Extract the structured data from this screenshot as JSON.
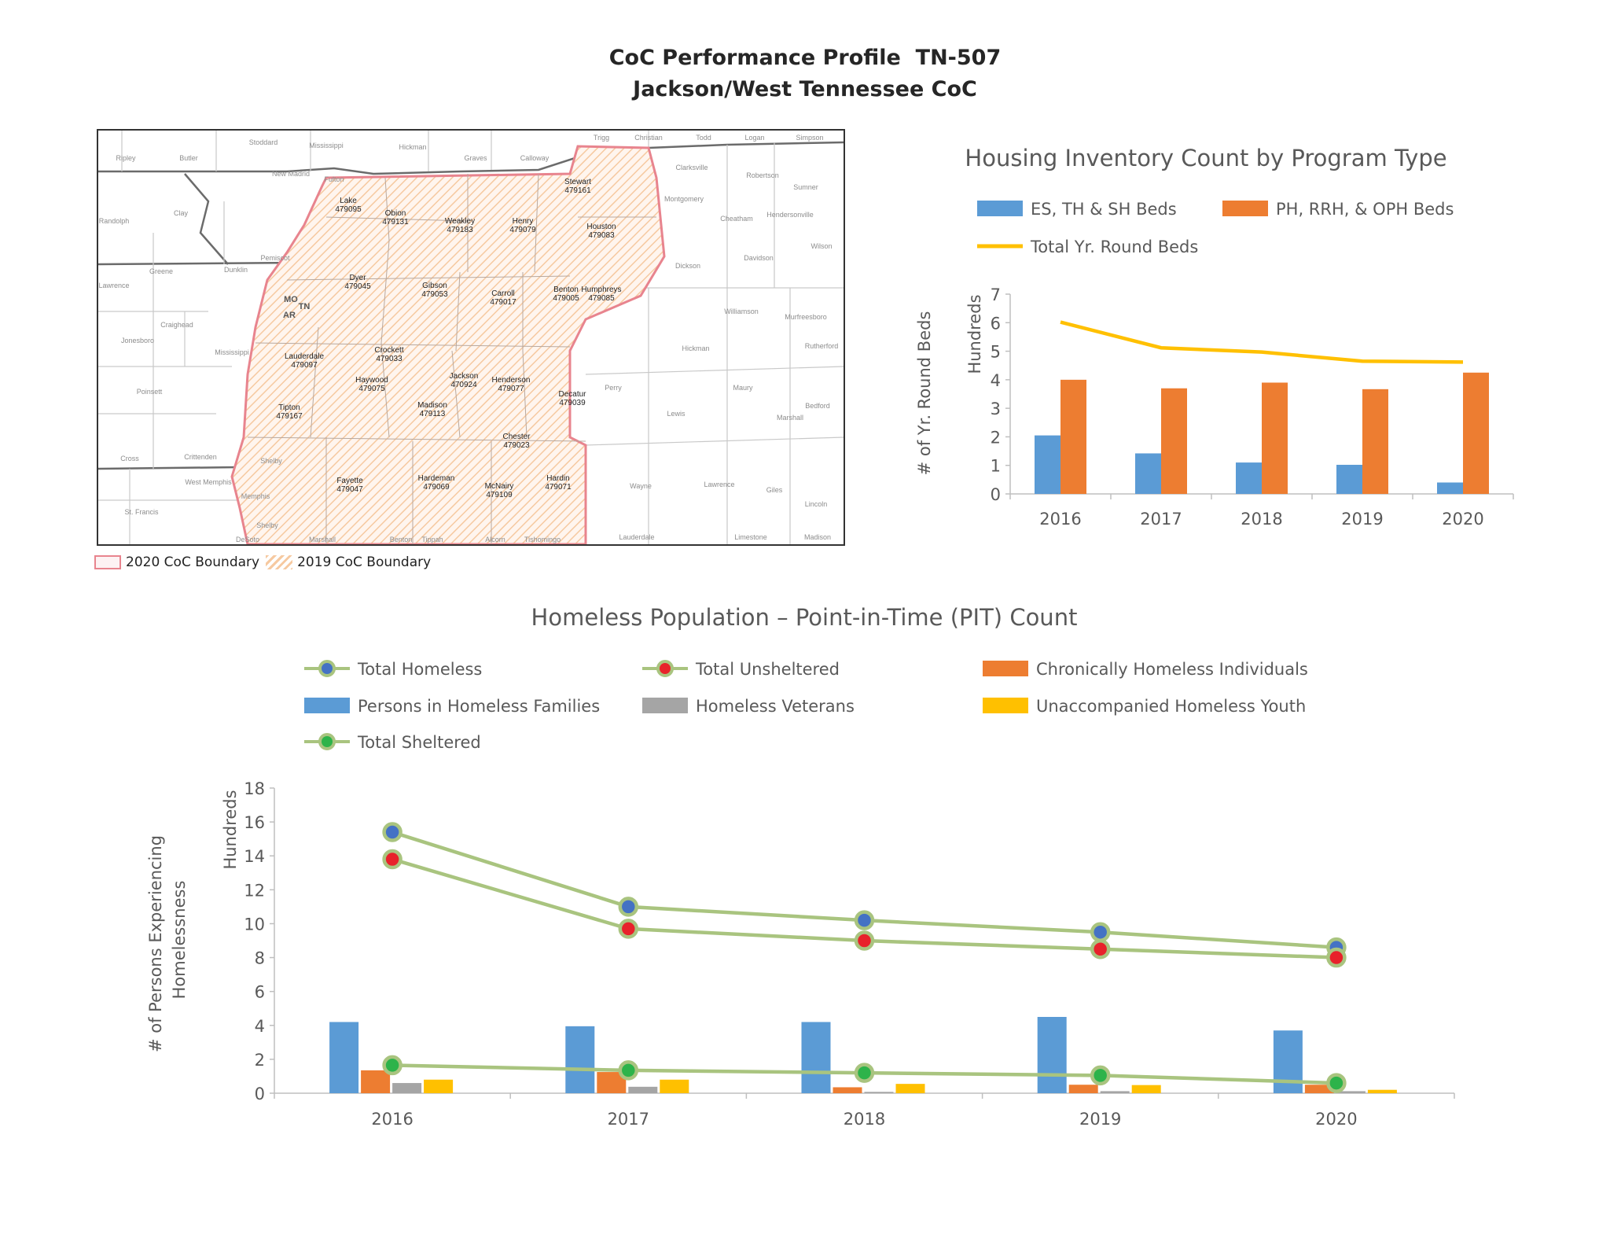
{
  "header": {
    "title_prefix": "CoC Performance Profile",
    "title_code": "TN-507",
    "subtitle": "Jackson/West Tennessee CoC"
  },
  "map": {
    "legend_2020": "2020 CoC Boundary",
    "legend_2019": "2019 CoC Boundary",
    "state_labels": [
      "MO",
      "TN",
      "AR"
    ],
    "coc_counties": [
      {
        "name": "Lake",
        "code": "479095"
      },
      {
        "name": "Obion",
        "code": "479131"
      },
      {
        "name": "Weakley",
        "code": "479183"
      },
      {
        "name": "Henry",
        "code": "479079"
      },
      {
        "name": "Stewart",
        "code": "479161"
      },
      {
        "name": "Houston",
        "code": "479083"
      },
      {
        "name": "Dyer",
        "code": "479045"
      },
      {
        "name": "Gibson",
        "code": "479053"
      },
      {
        "name": "Carroll",
        "code": "479017"
      },
      {
        "name": "Benton",
        "code": "479005"
      },
      {
        "name": "Humphreys",
        "code": "479085"
      },
      {
        "name": "Crockett",
        "code": "479033"
      },
      {
        "name": "Lauderdale",
        "code": "479097"
      },
      {
        "name": "Jackson",
        "code": "470924"
      },
      {
        "name": "Haywood",
        "code": "479075"
      },
      {
        "name": "Henderson",
        "code": "479077"
      },
      {
        "name": "Madison",
        "code": "479113"
      },
      {
        "name": "Decatur",
        "code": "479039"
      },
      {
        "name": "Tipton",
        "code": "479167"
      },
      {
        "name": "Chester",
        "code": "479023"
      },
      {
        "name": "Fayette",
        "code": "479047"
      },
      {
        "name": "Hardeman",
        "code": "479069"
      },
      {
        "name": "McNairy",
        "code": "479109"
      },
      {
        "name": "Hardin",
        "code": "479071"
      }
    ],
    "other_counties": [
      "Stoddard",
      "Mississippi",
      "Hickman",
      "Graves",
      "Calloway",
      "Trigg",
      "Christian",
      "Todd",
      "Logan",
      "Simpson",
      "Ripley",
      "Butler",
      "New Madrid",
      "Fulton",
      "Clarksville",
      "Robertson",
      "Sumner",
      "Montgomery",
      "Randolph",
      "Clay",
      "Cheatham",
      "Hendersonville",
      "Wilson",
      "Pemiscot",
      "Davidson",
      "Greene",
      "Dunklin",
      "Dickson",
      "Lawrence",
      "Craighead",
      "Williamson",
      "Murfreesboro",
      "Jonesboro",
      "Mississippi",
      "Hickman",
      "Rutherford",
      "Poinsett",
      "Perry",
      "Maury",
      "Lewis",
      "Marshall",
      "Bedford",
      "Cross",
      "Crittenden",
      "Shelby",
      "West Memphis",
      "Wayne",
      "Lawrence",
      "Giles",
      "Lincoln",
      "Memphis",
      "Shelby",
      "St. Francis",
      "DeSoto",
      "Marshall",
      "Benton",
      "Tippah",
      "Alcorn",
      "Tishomingo",
      "Lauderdale",
      "Limestone",
      "Madison"
    ]
  },
  "colors": {
    "blue": "#5b9bd5",
    "orange": "#ed7d31",
    "gray": "#a5a5a5",
    "yellow": "#ffc000",
    "green_line": "#a9c47f",
    "marker_blue": "#4472c4",
    "marker_red": "#e8222b",
    "marker_green": "#2db34a",
    "boundary_2020": "#e8848e",
    "hatch_2019": "#f6c9a0"
  },
  "hic_chart": {
    "chart_data": {
      "type": "bar",
      "title": "Housing Inventory Count by Program Type",
      "ylabel": "# of Yr. Round Beds",
      "units_label": "Hundreds",
      "categories": [
        "2016",
        "2017",
        "2018",
        "2019",
        "2020"
      ],
      "ylim": [
        0,
        7
      ],
      "yticks": [
        "0",
        "1",
        "2",
        "3",
        "4",
        "5",
        "6",
        "7"
      ],
      "legend_position": "top",
      "series": [
        {
          "name": "ES, TH & SH Beds",
          "type": "bar",
          "color": "#5b9bd5",
          "values": [
            2.05,
            1.42,
            1.1,
            1.02,
            0.4
          ]
        },
        {
          "name": "PH, RRH, & OPH Beds",
          "type": "bar",
          "color": "#ed7d31",
          "values": [
            4.0,
            3.7,
            3.9,
            3.67,
            4.25
          ]
        },
        {
          "name": "Total Yr. Round Beds",
          "type": "line",
          "color": "#ffc000",
          "values": [
            6.02,
            5.12,
            4.97,
            4.65,
            4.62
          ]
        }
      ]
    }
  },
  "pit_chart": {
    "chart_data": {
      "type": "bar",
      "title": "Homeless Population – Point-in-Time (PIT) Count",
      "ylabel_line1": "# of Persons Experiencing",
      "ylabel_line2": "Homelessness",
      "units_label": "Hundreds",
      "categories": [
        "2016",
        "2017",
        "2018",
        "2019",
        "2020"
      ],
      "ylim": [
        0,
        18
      ],
      "yticks": [
        "0",
        "2",
        "4",
        "6",
        "8",
        "10",
        "12",
        "14",
        "16",
        "18"
      ],
      "legend_position": "top",
      "series": [
        {
          "name": "Total Homeless",
          "type": "line",
          "marker": "#4472c4",
          "values": [
            15.4,
            11.0,
            10.2,
            9.5,
            8.6
          ]
        },
        {
          "name": "Total Unsheltered",
          "type": "line",
          "marker": "#e8222b",
          "values": [
            13.8,
            9.7,
            9.0,
            8.5,
            8.0
          ]
        },
        {
          "name": "Persons in Homeless Families",
          "type": "bar",
          "color": "#5b9bd5",
          "values": [
            4.2,
            3.95,
            4.2,
            4.5,
            3.7
          ]
        },
        {
          "name": "Chronically Homeless Individuals",
          "type": "bar",
          "color": "#ed7d31",
          "values": [
            1.35,
            1.25,
            0.35,
            0.5,
            0.5
          ]
        },
        {
          "name": "Homeless Veterans",
          "type": "bar",
          "color": "#a5a5a5",
          "values": [
            0.6,
            0.38,
            0.08,
            0.12,
            0.12
          ]
        },
        {
          "name": "Unaccompanied Homeless Youth",
          "type": "bar",
          "color": "#ffc000",
          "values": [
            0.8,
            0.8,
            0.55,
            0.48,
            0.2
          ]
        },
        {
          "name": "Total Sheltered",
          "type": "line",
          "marker": "#2db34a",
          "values": [
            1.65,
            1.35,
            1.2,
            1.05,
            0.6
          ]
        }
      ]
    }
  }
}
